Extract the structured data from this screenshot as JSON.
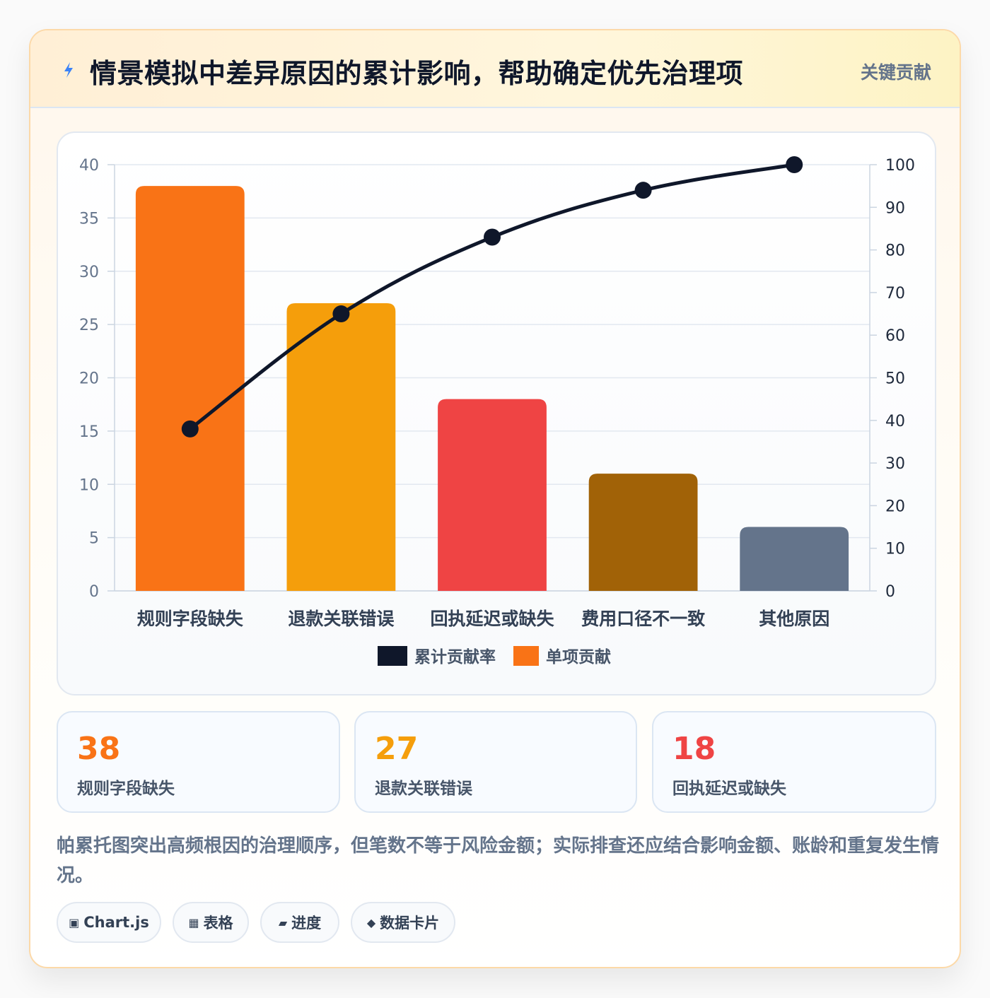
{
  "header": {
    "title": "情景模拟中差异原因的累计影响，帮助确定优先治理项",
    "tag": "关键贡献",
    "icon": "lightning-icon",
    "icon_color": "#3b82f6"
  },
  "chart_data": {
    "type": "bar",
    "categories": [
      "规则字段缺失",
      "退款关联错误",
      "回执延迟或缺失",
      "费用口径不一致",
      "其他原因"
    ],
    "series": [
      {
        "name": "单项贡献",
        "type": "bar",
        "axis": "left",
        "values": [
          38,
          27,
          18,
          11,
          6
        ],
        "colors": [
          "#f97316",
          "#f59e0b",
          "#ef4444",
          "#a16207",
          "#64748b"
        ]
      },
      {
        "name": "累计贡献率",
        "type": "line",
        "axis": "right",
        "values": [
          38,
          65,
          83,
          94,
          100
        ],
        "color": "#0f172a"
      }
    ],
    "y_left": {
      "min": 0,
      "max": 40,
      "ticks": [
        0,
        5,
        10,
        15,
        20,
        25,
        30,
        35,
        40
      ]
    },
    "y_right": {
      "min": 0,
      "max": 100,
      "ticks": [
        0,
        10,
        20,
        30,
        40,
        50,
        60,
        70,
        80,
        90,
        100
      ]
    },
    "legend": [
      {
        "label": "累计贡献率",
        "color": "#0f172a"
      },
      {
        "label": "单项贡献",
        "color": "#f97316"
      }
    ],
    "legend_position": "bottom",
    "grid": true
  },
  "stats": [
    {
      "value": "38",
      "label": "规则字段缺失",
      "color": "#f97316"
    },
    {
      "value": "27",
      "label": "退款关联错误",
      "color": "#f59e0b"
    },
    {
      "value": "18",
      "label": "回执延迟或缺失",
      "color": "#ef4444"
    }
  ],
  "note": "帕累托图突出高频根因的治理顺序，但笔数不等于风险金额；实际排查还应结合影响金额、账龄和重复发生情况。",
  "chips": [
    {
      "icon": "▣",
      "label": "Chart.js"
    },
    {
      "icon": "▦",
      "label": "表格"
    },
    {
      "icon": "▰",
      "label": "进度"
    },
    {
      "icon": "◆",
      "label": "数据卡片"
    }
  ]
}
